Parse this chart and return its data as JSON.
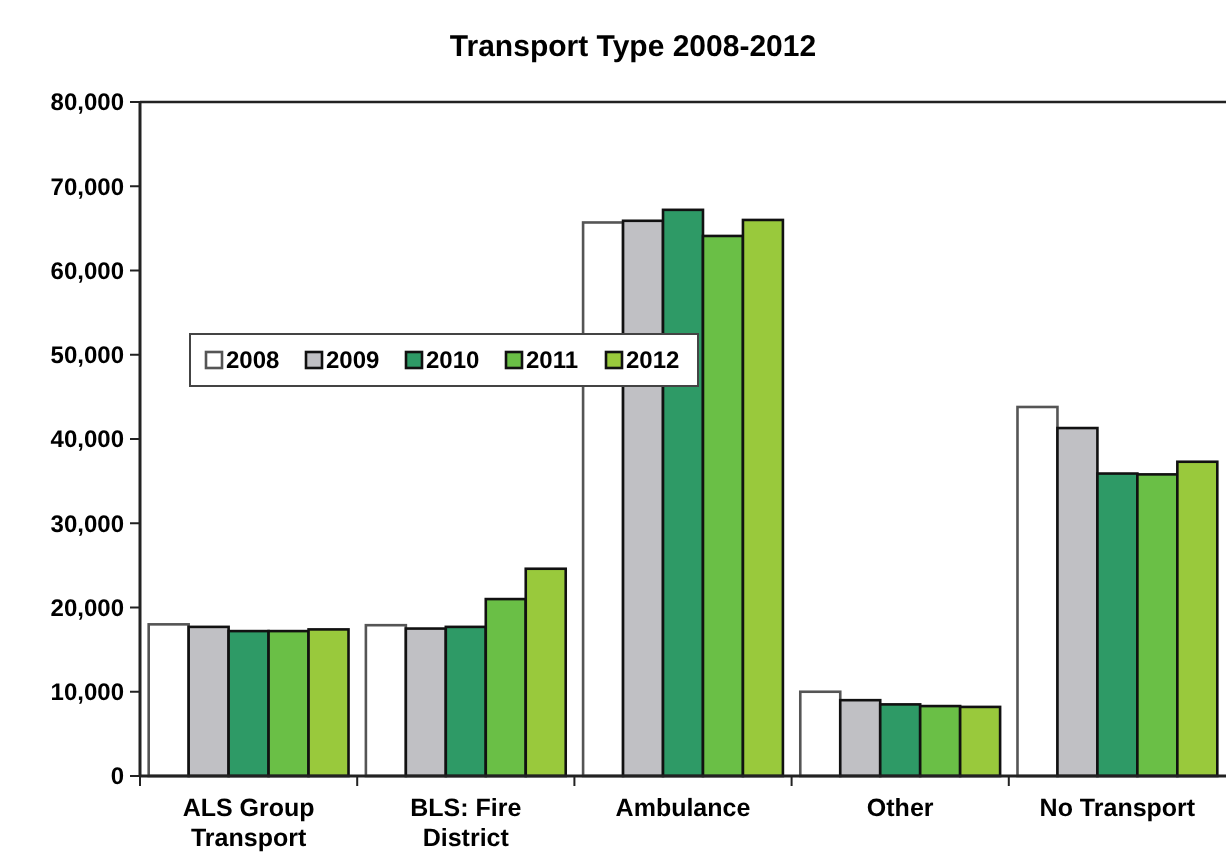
{
  "chart_data": {
    "type": "bar",
    "title": "Transport Type 2008-2012",
    "categories": [
      "ALS Group Transport",
      "BLS: Fire District",
      "Ambulance",
      "Other",
      "No Transport"
    ],
    "series": [
      {
        "name": "2008",
        "color": "#ffffff",
        "values": [
          18000,
          17900,
          65700,
          10000,
          43800
        ]
      },
      {
        "name": "2009",
        "color": "#c0c0c4",
        "values": [
          17700,
          17500,
          65900,
          9000,
          41300
        ]
      },
      {
        "name": "2010",
        "color": "#2e9a66",
        "values": [
          17200,
          17700,
          67200,
          8500,
          35900
        ]
      },
      {
        "name": "2011",
        "color": "#6abf46",
        "values": [
          17200,
          21000,
          64100,
          8300,
          35800
        ]
      },
      {
        "name": "2012",
        "color": "#99c93c",
        "values": [
          17400,
          24600,
          66000,
          8200,
          37300
        ]
      }
    ],
    "ylim": [
      0,
      80000
    ],
    "yticks": [
      {
        "value": 0,
        "label": "0"
      },
      {
        "value": 10000,
        "label": "10,000"
      },
      {
        "value": 20000,
        "label": "20,000"
      },
      {
        "value": 30000,
        "label": "30,000"
      },
      {
        "value": 40000,
        "label": "40,000"
      },
      {
        "value": 50000,
        "label": "50,000"
      },
      {
        "value": 60000,
        "label": "60,000"
      },
      {
        "value": 70000,
        "label": "70,000"
      },
      {
        "value": 80000,
        "label": "80,000"
      }
    ],
    "grid": false,
    "legend": "left"
  }
}
